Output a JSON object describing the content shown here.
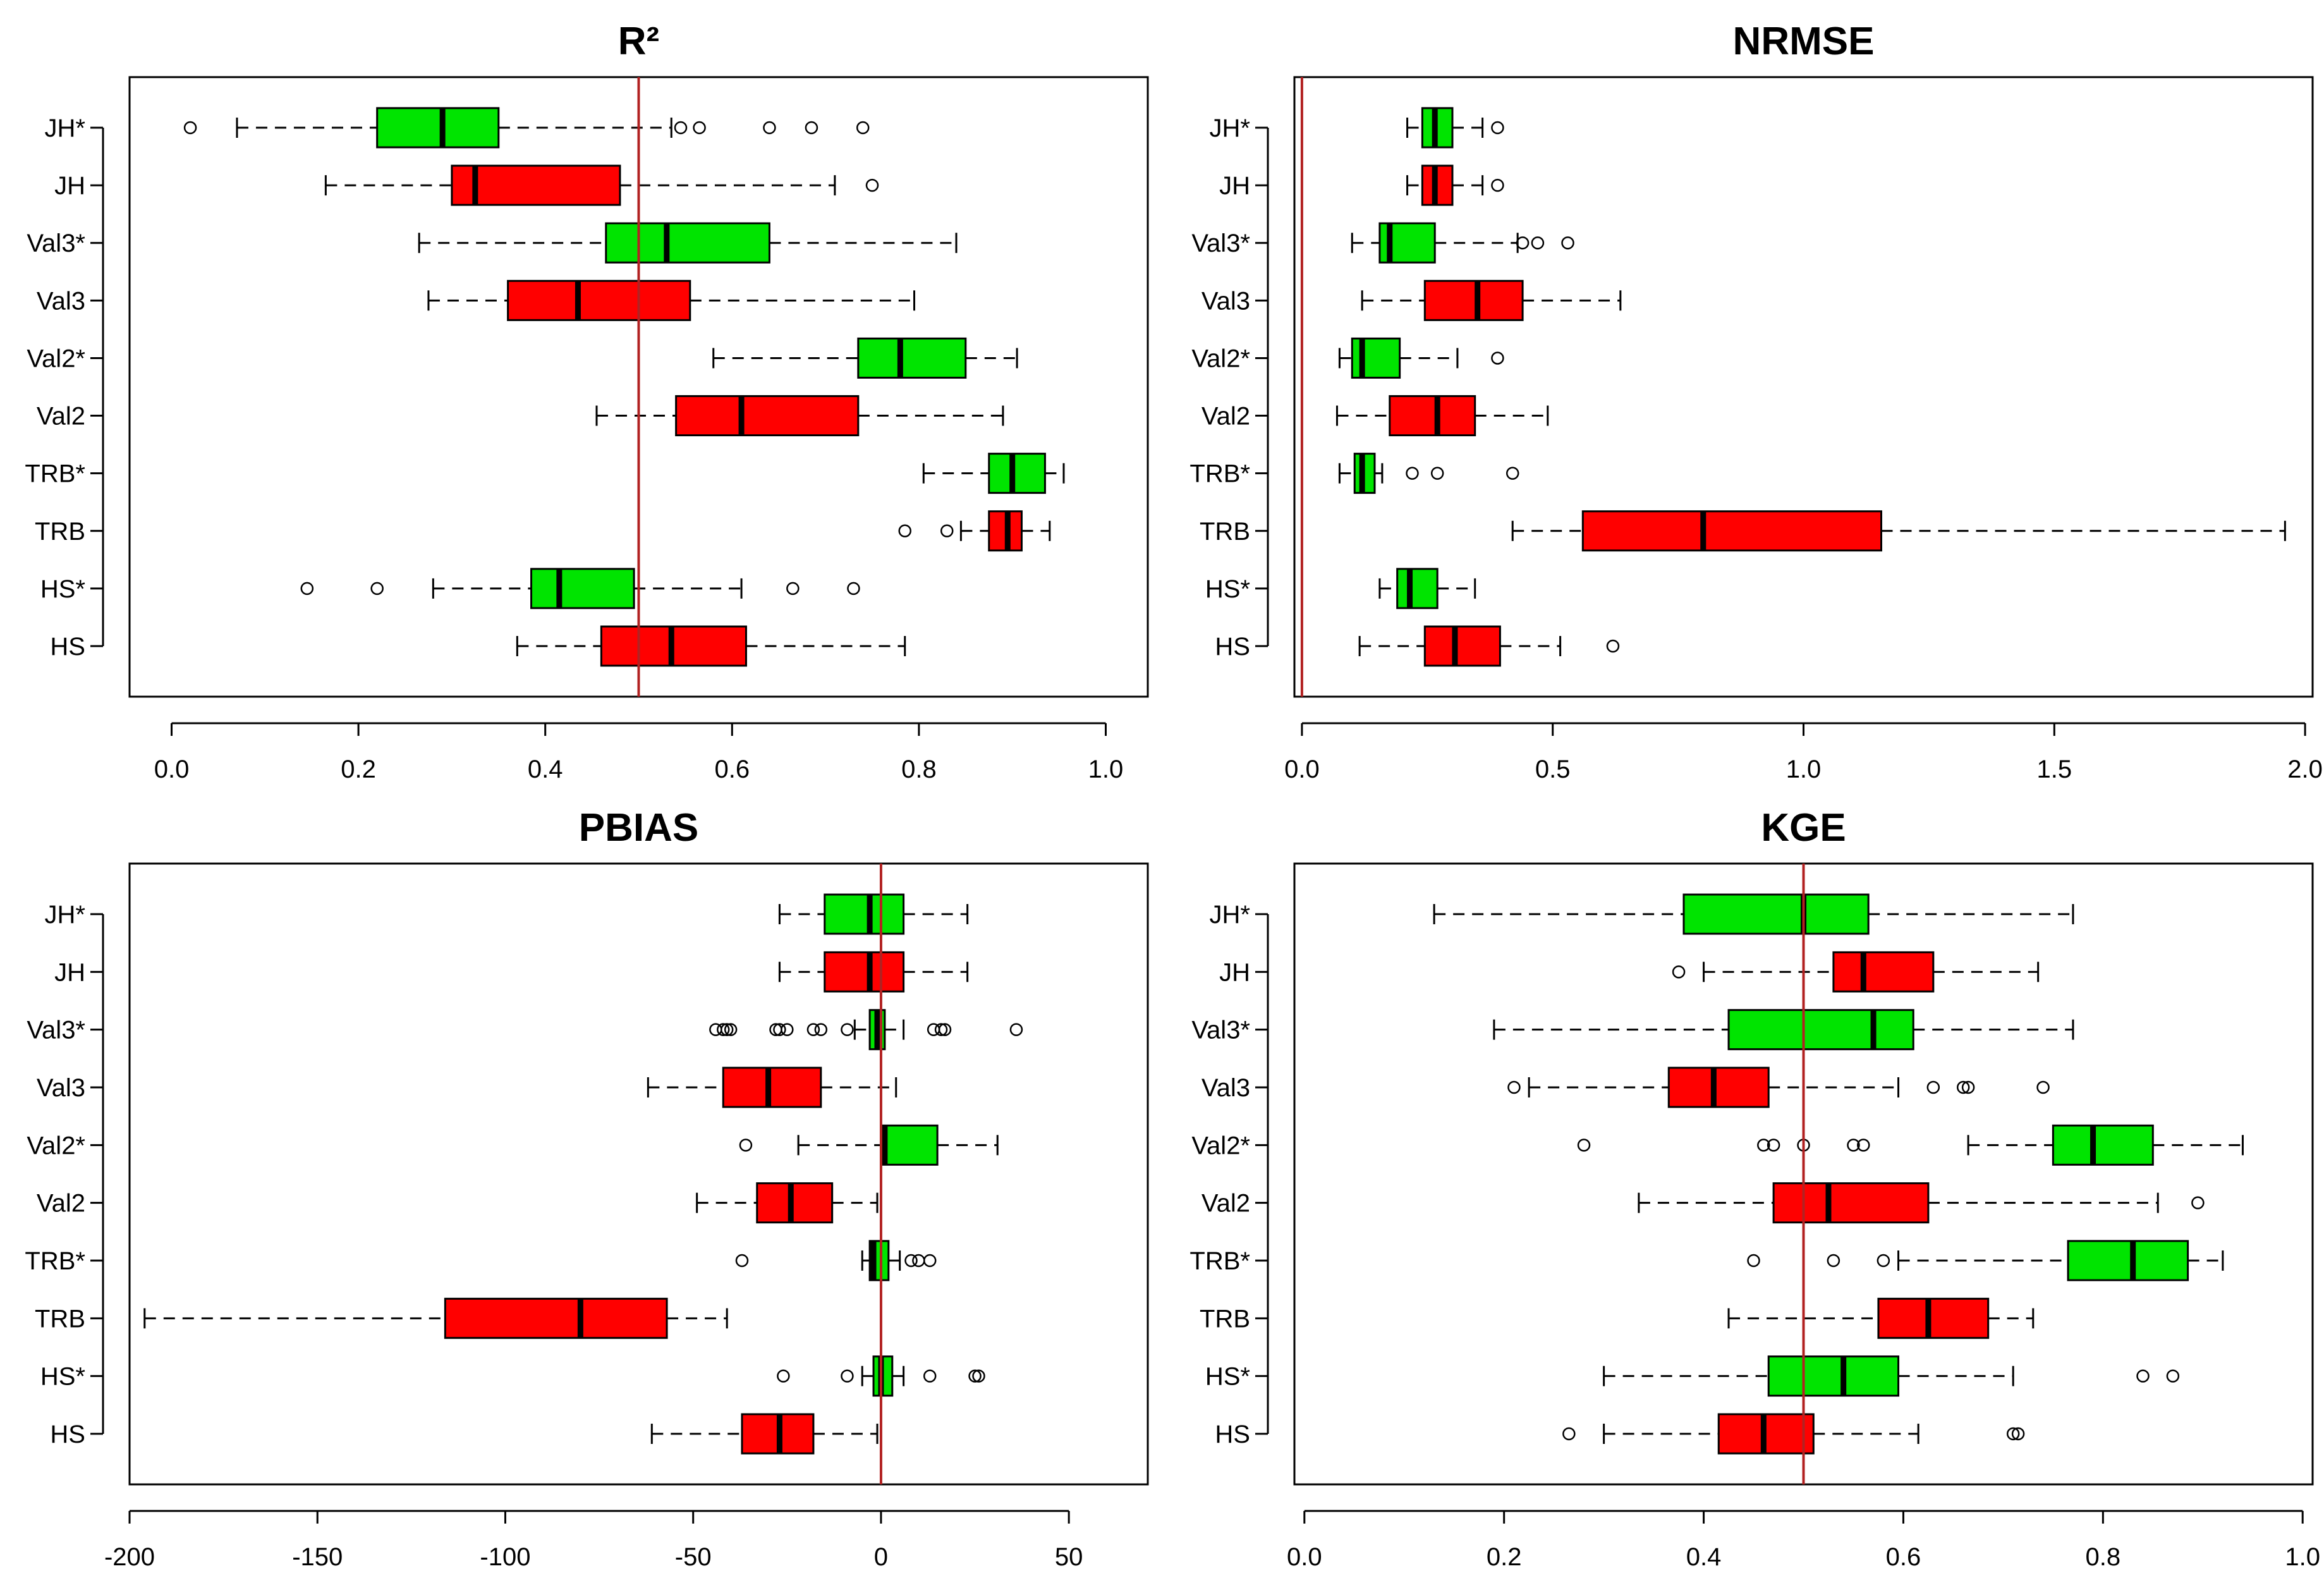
{
  "colors": {
    "calibrated": "#00e400",
    "uncalibrated": "#ff0000",
    "reference_line": "#b22222"
  },
  "chart_data": [
    {
      "type": "boxplot",
      "title": "R²",
      "orientation": "horizontal",
      "categories": [
        "JH*",
        "JH",
        "Val3*",
        "Val3",
        "Val2*",
        "Val2",
        "TRB*",
        "TRB",
        "HS*",
        "HS"
      ],
      "xlim": [
        -0.045,
        1.045
      ],
      "xticks": [
        0.0,
        0.2,
        0.4,
        0.6,
        0.8,
        1.0
      ],
      "xtick_labels": [
        "0.0",
        "0.2",
        "0.4",
        "0.6",
        "0.8",
        "1.0"
      ],
      "reference_line": 0.5,
      "boxes": [
        {
          "label": "JH*",
          "color": "green",
          "whisker_low": 0.07,
          "q1": 0.22,
          "median": 0.29,
          "q3": 0.35,
          "whisker_high": 0.535,
          "outliers": [
            0.02,
            0.545,
            0.565,
            0.64,
            0.685,
            0.74
          ]
        },
        {
          "label": "JH",
          "color": "red",
          "whisker_low": 0.165,
          "q1": 0.3,
          "median": 0.325,
          "q3": 0.48,
          "whisker_high": 0.71,
          "outliers": [
            0.75
          ]
        },
        {
          "label": "Val3*",
          "color": "green",
          "whisker_low": 0.265,
          "q1": 0.465,
          "median": 0.53,
          "q3": 0.64,
          "whisker_high": 0.84,
          "outliers": []
        },
        {
          "label": "Val3",
          "color": "red",
          "whisker_low": 0.275,
          "q1": 0.36,
          "median": 0.435,
          "q3": 0.555,
          "whisker_high": 0.795,
          "outliers": []
        },
        {
          "label": "Val2*",
          "color": "green",
          "whisker_low": 0.58,
          "q1": 0.735,
          "median": 0.78,
          "q3": 0.85,
          "whisker_high": 0.905,
          "outliers": []
        },
        {
          "label": "Val2",
          "color": "red",
          "whisker_low": 0.455,
          "q1": 0.54,
          "median": 0.61,
          "q3": 0.735,
          "whisker_high": 0.89,
          "outliers": []
        },
        {
          "label": "TRB*",
          "color": "green",
          "whisker_low": 0.805,
          "q1": 0.875,
          "median": 0.9,
          "q3": 0.935,
          "whisker_high": 0.955,
          "outliers": []
        },
        {
          "label": "TRB",
          "color": "red",
          "whisker_low": 0.845,
          "q1": 0.875,
          "median": 0.895,
          "q3": 0.91,
          "whisker_high": 0.94,
          "outliers": [
            0.785,
            0.83
          ]
        },
        {
          "label": "HS*",
          "color": "green",
          "whisker_low": 0.28,
          "q1": 0.385,
          "median": 0.415,
          "q3": 0.495,
          "whisker_high": 0.61,
          "outliers": [
            0.145,
            0.22,
            0.665,
            0.73
          ]
        },
        {
          "label": "HS",
          "color": "red",
          "whisker_low": 0.37,
          "q1": 0.46,
          "median": 0.535,
          "q3": 0.615,
          "whisker_high": 0.785,
          "outliers": []
        }
      ]
    },
    {
      "type": "boxplot",
      "title": "NRMSE",
      "orientation": "horizontal",
      "categories": [
        "JH*",
        "JH",
        "Val3*",
        "Val3",
        "Val2*",
        "Val2",
        "TRB*",
        "TRB",
        "HS*",
        "HS"
      ],
      "xlim": [
        -0.015,
        2.015
      ],
      "xticks": [
        0.0,
        0.5,
        1.0,
        1.5,
        2.0
      ],
      "xtick_labels": [
        "0.0",
        "0.5",
        "1.0",
        "1.5",
        "2.0"
      ],
      "reference_line": 0.0,
      "boxes": [
        {
          "label": "JH*",
          "color": "green",
          "whisker_low": 0.21,
          "q1": 0.24,
          "median": 0.265,
          "q3": 0.3,
          "whisker_high": 0.36,
          "outliers": [
            0.39
          ]
        },
        {
          "label": "JH",
          "color": "red",
          "whisker_low": 0.21,
          "q1": 0.24,
          "median": 0.265,
          "q3": 0.3,
          "whisker_high": 0.36,
          "outliers": [
            0.39
          ]
        },
        {
          "label": "Val3*",
          "color": "green",
          "whisker_low": 0.1,
          "q1": 0.155,
          "median": 0.175,
          "q3": 0.265,
          "whisker_high": 0.43,
          "outliers": [
            0.44,
            0.47,
            0.53
          ]
        },
        {
          "label": "Val3",
          "color": "red",
          "whisker_low": 0.12,
          "q1": 0.245,
          "median": 0.35,
          "q3": 0.44,
          "whisker_high": 0.635,
          "outliers": []
        },
        {
          "label": "Val2*",
          "color": "green",
          "whisker_low": 0.075,
          "q1": 0.1,
          "median": 0.12,
          "q3": 0.195,
          "whisker_high": 0.31,
          "outliers": [
            0.39
          ]
        },
        {
          "label": "Val2",
          "color": "red",
          "whisker_low": 0.07,
          "q1": 0.175,
          "median": 0.27,
          "q3": 0.345,
          "whisker_high": 0.49,
          "outliers": []
        },
        {
          "label": "TRB*",
          "color": "green",
          "whisker_low": 0.075,
          "q1": 0.105,
          "median": 0.12,
          "q3": 0.145,
          "whisker_high": 0.16,
          "outliers": [
            0.22,
            0.27,
            0.42
          ]
        },
        {
          "label": "TRB",
          "color": "red",
          "whisker_low": 0.42,
          "q1": 0.56,
          "median": 0.8,
          "q3": 1.155,
          "whisker_high": 1.96,
          "outliers": []
        },
        {
          "label": "HS*",
          "color": "green",
          "whisker_low": 0.155,
          "q1": 0.19,
          "median": 0.215,
          "q3": 0.27,
          "whisker_high": 0.345,
          "outliers": []
        },
        {
          "label": "HS",
          "color": "red",
          "whisker_low": 0.115,
          "q1": 0.245,
          "median": 0.305,
          "q3": 0.395,
          "whisker_high": 0.515,
          "outliers": [
            0.62
          ]
        }
      ]
    },
    {
      "type": "boxplot",
      "title": "PBIAS",
      "orientation": "horizontal",
      "categories": [
        "JH*",
        "JH",
        "Val3*",
        "Val3",
        "Val2*",
        "Val2",
        "TRB*",
        "TRB",
        "HS*",
        "HS"
      ],
      "xlim": [
        -200,
        71
      ],
      "xticks": [
        -200,
        -150,
        -100,
        -50,
        0,
        50
      ],
      "xtick_labels": [
        "-200",
        "-150",
        "-100",
        "-50",
        "0",
        "50"
      ],
      "reference_line": 0,
      "boxes": [
        {
          "label": "JH*",
          "color": "green",
          "whisker_low": -27,
          "q1": -15,
          "median": -3,
          "q3": 6,
          "whisker_high": 23,
          "outliers": []
        },
        {
          "label": "JH",
          "color": "red",
          "whisker_low": -27,
          "q1": -15,
          "median": -3,
          "q3": 6,
          "whisker_high": 23,
          "outliers": []
        },
        {
          "label": "Val3*",
          "color": "green",
          "whisker_low": -7,
          "q1": -3,
          "median": -1,
          "q3": 1,
          "whisker_high": 6,
          "outliers": [
            -44,
            -42,
            -41,
            -40,
            -28,
            -27,
            -25,
            -18,
            -16,
            -9,
            14,
            16,
            17,
            36
          ]
        },
        {
          "label": "Val3",
          "color": "red",
          "whisker_low": -62,
          "q1": -42,
          "median": -30,
          "q3": -16,
          "whisker_high": 4,
          "outliers": []
        },
        {
          "label": "Val2*",
          "color": "green",
          "whisker_low": -22,
          "q1": 0,
          "median": 1,
          "q3": 15,
          "whisker_high": 31,
          "outliers": [
            -36
          ]
        },
        {
          "label": "Val2",
          "color": "red",
          "whisker_low": -49,
          "q1": -33,
          "median": -24,
          "q3": -13,
          "whisker_high": -1,
          "outliers": []
        },
        {
          "label": "TRB*",
          "color": "green",
          "whisker_low": -5,
          "q1": -3,
          "median": -2,
          "q3": 2,
          "whisker_high": 5,
          "outliers": [
            -37,
            8,
            10,
            13
          ]
        },
        {
          "label": "TRB",
          "color": "red",
          "whisker_low": -196,
          "q1": -116,
          "median": -80,
          "q3": -57,
          "whisker_high": -41,
          "outliers": []
        },
        {
          "label": "HS*",
          "color": "green",
          "whisker_low": -5,
          "q1": -2,
          "median": 0,
          "q3": 3,
          "whisker_high": 6,
          "outliers": [
            -26,
            -9,
            13,
            25,
            26
          ]
        },
        {
          "label": "HS",
          "color": "red",
          "whisker_low": -61,
          "q1": -37,
          "median": -27,
          "q3": -18,
          "whisker_high": -1,
          "outliers": []
        }
      ]
    },
    {
      "type": "boxplot",
      "title": "KGE",
      "orientation": "horizontal",
      "categories": [
        "JH*",
        "JH",
        "Val3*",
        "Val3",
        "Val2*",
        "Val2",
        "TRB*",
        "TRB",
        "HS*",
        "HS"
      ],
      "xlim": [
        -0.01,
        1.01
      ],
      "xticks": [
        0.0,
        0.2,
        0.4,
        0.6,
        0.8,
        1.0
      ],
      "xtick_labels": [
        "0.0",
        "0.2",
        "0.4",
        "0.6",
        "0.8",
        "1.0"
      ],
      "reference_line": 0.5,
      "boxes": [
        {
          "label": "JH*",
          "color": "green",
          "whisker_low": 0.13,
          "q1": 0.38,
          "median": 0.5,
          "q3": 0.565,
          "whisker_high": 0.77,
          "outliers": []
        },
        {
          "label": "JH",
          "color": "red",
          "whisker_low": 0.4,
          "q1": 0.53,
          "median": 0.56,
          "q3": 0.63,
          "whisker_high": 0.735,
          "outliers": [
            0.375
          ]
        },
        {
          "label": "Val3*",
          "color": "green",
          "whisker_low": 0.19,
          "q1": 0.425,
          "median": 0.57,
          "q3": 0.61,
          "whisker_high": 0.77,
          "outliers": []
        },
        {
          "label": "Val3",
          "color": "red",
          "whisker_low": 0.225,
          "q1": 0.365,
          "median": 0.41,
          "q3": 0.465,
          "whisker_high": 0.595,
          "outliers": [
            0.21,
            0.63,
            0.66,
            0.665,
            0.74
          ]
        },
        {
          "label": "Val2*",
          "color": "green",
          "whisker_low": 0.665,
          "q1": 0.75,
          "median": 0.79,
          "q3": 0.85,
          "whisker_high": 0.94,
          "outliers": [
            0.28,
            0.46,
            0.47,
            0.5,
            0.55,
            0.56
          ]
        },
        {
          "label": "Val2",
          "color": "red",
          "whisker_low": 0.335,
          "q1": 0.47,
          "median": 0.525,
          "q3": 0.625,
          "whisker_high": 0.855,
          "outliers": [
            0.895
          ]
        },
        {
          "label": "TRB*",
          "color": "green",
          "whisker_low": 0.595,
          "q1": 0.765,
          "median": 0.83,
          "q3": 0.885,
          "whisker_high": 0.92,
          "outliers": [
            0.45,
            0.53,
            0.58
          ]
        },
        {
          "label": "TRB",
          "color": "red",
          "whisker_low": 0.425,
          "q1": 0.575,
          "median": 0.625,
          "q3": 0.685,
          "whisker_high": 0.73,
          "outliers": []
        },
        {
          "label": "HS*",
          "color": "green",
          "whisker_low": 0.3,
          "q1": 0.465,
          "median": 0.54,
          "q3": 0.595,
          "whisker_high": 0.71,
          "outliers": [
            0.84,
            0.87
          ]
        },
        {
          "label": "HS",
          "color": "red",
          "whisker_low": 0.3,
          "q1": 0.415,
          "median": 0.46,
          "q3": 0.51,
          "whisker_high": 0.615,
          "outliers": [
            0.265,
            0.71,
            0.715
          ]
        }
      ]
    }
  ]
}
